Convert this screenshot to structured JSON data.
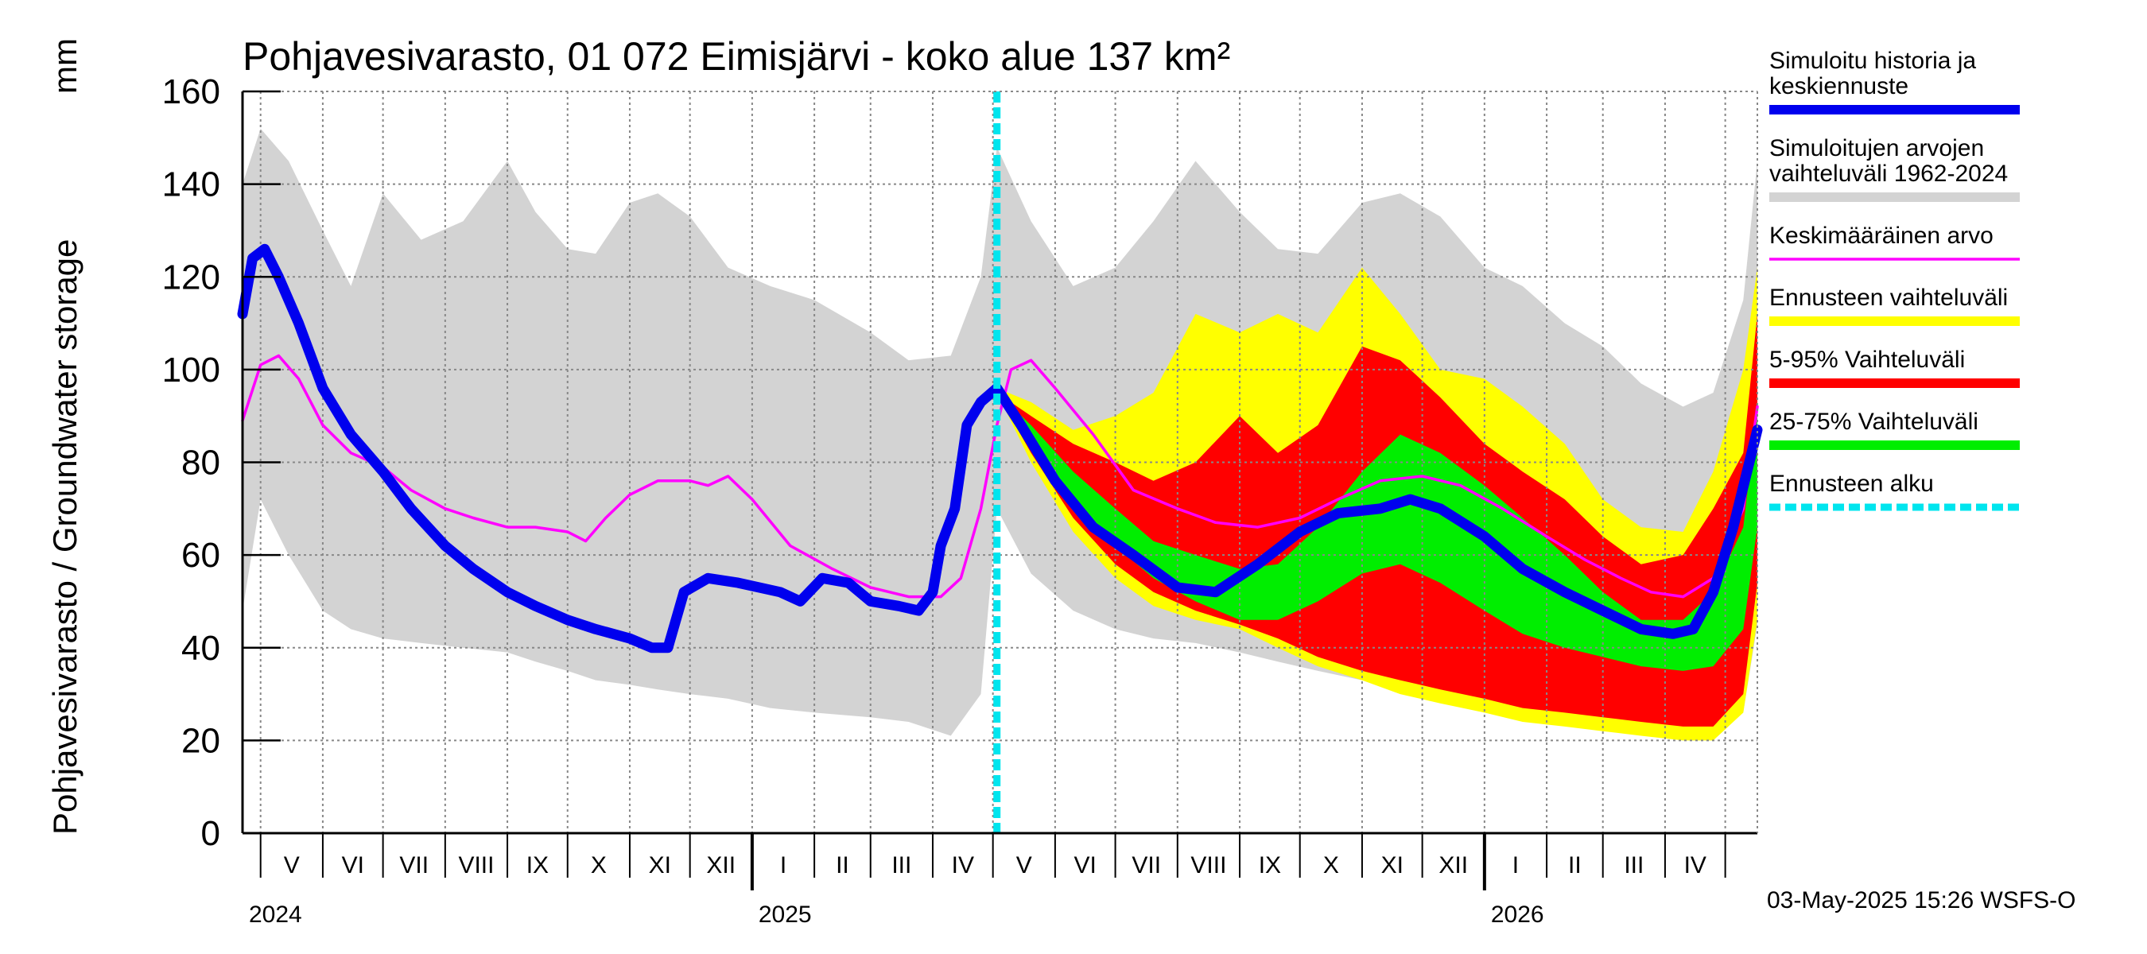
{
  "chart_data": {
    "type": "line",
    "title": "Pohjavesivarasto, 01 072 Eimisjärvi - koko alue 137 km²",
    "ylabel": "Pohjavesivarasto / Groundwater storage",
    "yunit": "mm",
    "ylim": [
      0,
      160
    ],
    "yticks": [
      0,
      20,
      40,
      60,
      80,
      100,
      120,
      140,
      160
    ],
    "xlim": [
      "2024-04-22",
      "2026-05-17"
    ],
    "grid": true,
    "months": [
      "V",
      "VI",
      "VII",
      "VIII",
      "IX",
      "X",
      "XI",
      "XII",
      "I",
      "II",
      "III",
      "IV",
      "V",
      "VI",
      "VII",
      "VIII",
      "IX",
      "X",
      "XI",
      "XII",
      "I",
      "II",
      "III",
      "IV"
    ],
    "month_starts": [
      "2024-05-01",
      "2024-06-01",
      "2024-07-01",
      "2024-08-01",
      "2024-09-01",
      "2024-10-01",
      "2024-11-01",
      "2024-12-01",
      "2025-01-01",
      "2025-02-01",
      "2025-03-01",
      "2025-04-01",
      "2025-05-01",
      "2025-06-01",
      "2025-07-01",
      "2025-08-01",
      "2025-09-01",
      "2025-10-01",
      "2025-11-01",
      "2025-12-01",
      "2026-01-01",
      "2026-02-01",
      "2026-03-01",
      "2026-04-01",
      "2026-05-01"
    ],
    "years": [
      {
        "label": "2024",
        "date": "2024-04-22"
      },
      {
        "label": "2025",
        "date": "2025-01-01"
      },
      {
        "label": "2026",
        "date": "2026-01-01"
      }
    ],
    "forecast_start": "2025-05-03",
    "series": [
      {
        "name": "Simuloitujen arvojen vaihteluväli 1962-2024",
        "kind": "band",
        "color": "#d3d3d3",
        "x": [
          "2024-04-22",
          "2024-05-01",
          "2024-05-15",
          "2024-06-01",
          "2024-06-15",
          "2024-07-01",
          "2024-07-20",
          "2024-08-10",
          "2024-09-01",
          "2024-09-15",
          "2024-10-01",
          "2024-10-15",
          "2024-11-01",
          "2024-11-15",
          "2024-12-01",
          "2024-12-20",
          "2025-01-10",
          "2025-02-01",
          "2025-03-01",
          "2025-03-20",
          "2025-04-10",
          "2025-04-25",
          "2025-05-03",
          "2025-05-20",
          "2025-06-10",
          "2025-07-01",
          "2025-07-20",
          "2025-08-10",
          "2025-09-01",
          "2025-09-20",
          "2025-10-10",
          "2025-11-01",
          "2025-11-20",
          "2025-12-10",
          "2026-01-01",
          "2026-01-20",
          "2026-02-10",
          "2026-03-01",
          "2026-03-20",
          "2026-04-10",
          "2026-04-25",
          "2026-05-10",
          "2026-05-17"
        ],
        "upper": [
          140,
          152,
          145,
          130,
          118,
          138,
          128,
          132,
          145,
          134,
          126,
          125,
          136,
          138,
          133,
          122,
          118,
          115,
          108,
          102,
          103,
          120,
          148,
          132,
          118,
          122,
          132,
          145,
          134,
          126,
          125,
          136,
          138,
          133,
          122,
          118,
          110,
          105,
          97,
          92,
          95,
          115,
          145
        ],
        "lower": [
          48,
          72,
          60,
          48,
          44,
          42,
          41,
          40,
          39,
          37,
          35,
          33,
          32,
          31,
          30,
          29,
          27,
          26,
          25,
          24,
          21,
          30,
          70,
          56,
          48,
          44,
          42,
          41,
          39,
          37,
          35,
          33,
          32,
          30,
          29,
          27,
          25,
          24,
          23,
          22,
          21,
          26,
          45
        ]
      },
      {
        "name": "Ennusteen vaihteluväli",
        "kind": "band",
        "color": "#ffff00",
        "x": [
          "2025-05-03",
          "2025-05-20",
          "2025-06-10",
          "2025-07-01",
          "2025-07-20",
          "2025-08-10",
          "2025-09-01",
          "2025-09-20",
          "2025-10-10",
          "2025-11-01",
          "2025-11-20",
          "2025-12-10",
          "2026-01-01",
          "2026-01-20",
          "2026-02-10",
          "2026-03-01",
          "2026-03-20",
          "2026-04-10",
          "2026-04-25",
          "2026-05-10",
          "2026-05-17"
        ],
        "upper": [
          96,
          93,
          87,
          90,
          95,
          112,
          108,
          112,
          108,
          122,
          112,
          100,
          98,
          92,
          84,
          72,
          66,
          65,
          78,
          100,
          122
        ],
        "lower": [
          95,
          80,
          65,
          55,
          49,
          46,
          44,
          40,
          36,
          33,
          30,
          28,
          26,
          24,
          23,
          22,
          21,
          20,
          20,
          26,
          46
        ]
      },
      {
        "name": "5-95% Vaihteluväli",
        "kind": "band",
        "color": "#ff0000",
        "x": [
          "2025-05-03",
          "2025-05-20",
          "2025-06-10",
          "2025-07-01",
          "2025-07-20",
          "2025-08-10",
          "2025-09-01",
          "2025-09-20",
          "2025-10-10",
          "2025-11-01",
          "2025-11-20",
          "2025-12-10",
          "2026-01-01",
          "2026-01-20",
          "2026-02-10",
          "2026-03-01",
          "2026-03-20",
          "2026-04-10",
          "2026-04-25",
          "2026-05-10",
          "2026-05-17"
        ],
        "upper": [
          95,
          90,
          84,
          80,
          76,
          80,
          90,
          82,
          88,
          105,
          102,
          94,
          84,
          78,
          72,
          64,
          58,
          60,
          70,
          82,
          112
        ],
        "lower": [
          95,
          82,
          68,
          58,
          52,
          48,
          45,
          42,
          38,
          35,
          33,
          31,
          29,
          27,
          26,
          25,
          24,
          23,
          23,
          30,
          54
        ]
      },
      {
        "name": "25-75% Vaihteluväli",
        "kind": "band",
        "color": "#00ee00",
        "x": [
          "2025-05-03",
          "2025-05-20",
          "2025-06-10",
          "2025-07-01",
          "2025-07-20",
          "2025-08-10",
          "2025-09-01",
          "2025-09-20",
          "2025-10-10",
          "2025-11-01",
          "2025-11-20",
          "2025-12-10",
          "2026-01-01",
          "2026-01-20",
          "2026-02-10",
          "2026-03-01",
          "2026-03-20",
          "2026-04-10",
          "2026-04-25",
          "2026-05-10",
          "2026-05-17"
        ],
        "upper": [
          95,
          88,
          78,
          70,
          63,
          60,
          57,
          58,
          66,
          78,
          86,
          82,
          75,
          68,
          60,
          52,
          46,
          46,
          52,
          66,
          92
        ],
        "lower": [
          95,
          86,
          72,
          62,
          55,
          50,
          46,
          46,
          50,
          56,
          58,
          54,
          48,
          43,
          40,
          38,
          36,
          35,
          36,
          44,
          66
        ]
      },
      {
        "name": "Keskimääräinen arvo",
        "kind": "line",
        "color": "#ff00ff",
        "x": [
          "2024-04-22",
          "2024-05-01",
          "2024-05-10",
          "2024-05-20",
          "2024-06-01",
          "2024-06-15",
          "2024-07-01",
          "2024-07-15",
          "2024-08-01",
          "2024-08-15",
          "2024-09-01",
          "2024-09-15",
          "2024-10-01",
          "2024-10-10",
          "2024-10-20",
          "2024-11-01",
          "2024-11-15",
          "2024-12-01",
          "2024-12-10",
          "2024-12-20",
          "2025-01-01",
          "2025-01-20",
          "2025-02-10",
          "2025-03-01",
          "2025-03-20",
          "2025-04-05",
          "2025-04-15",
          "2025-04-25",
          "2025-05-03",
          "2025-05-10",
          "2025-05-20",
          "2025-06-01",
          "2025-06-20",
          "2025-07-10",
          "2025-08-01",
          "2025-08-20",
          "2025-09-10",
          "2025-10-01",
          "2025-10-20",
          "2025-11-10",
          "2025-12-01",
          "2025-12-20",
          "2026-01-10",
          "2026-02-01",
          "2026-02-20",
          "2026-03-10",
          "2026-03-25",
          "2026-04-10",
          "2026-04-25",
          "2026-05-10",
          "2026-05-17"
        ],
        "values": [
          89,
          101,
          103,
          98,
          88,
          82,
          79,
          74,
          70,
          68,
          66,
          66,
          65,
          63,
          68,
          73,
          76,
          76,
          75,
          77,
          72,
          62,
          57,
          53,
          51,
          51,
          55,
          70,
          88,
          100,
          102,
          96,
          86,
          74,
          70,
          67,
          66,
          68,
          72,
          76,
          77,
          75,
          70,
          64,
          59,
          55,
          52,
          51,
          55,
          70,
          92
        ]
      },
      {
        "name": "Simuloitu historia ja keskiennuste",
        "kind": "line",
        "color": "#0000ee",
        "x": [
          "2024-04-22",
          "2024-04-27",
          "2024-05-03",
          "2024-05-10",
          "2024-05-20",
          "2024-06-01",
          "2024-06-15",
          "2024-07-01",
          "2024-07-15",
          "2024-08-01",
          "2024-08-15",
          "2024-09-01",
          "2024-09-15",
          "2024-10-01",
          "2024-10-15",
          "2024-11-01",
          "2024-11-12",
          "2024-11-20",
          "2024-11-28",
          "2024-12-10",
          "2024-12-25",
          "2025-01-15",
          "2025-01-25",
          "2025-02-05",
          "2025-02-18",
          "2025-03-01",
          "2025-03-15",
          "2025-03-25",
          "2025-04-01",
          "2025-04-05",
          "2025-04-12",
          "2025-04-18",
          "2025-04-25",
          "2025-05-03",
          "2025-05-15",
          "2025-06-01",
          "2025-06-20",
          "2025-07-10",
          "2025-08-01",
          "2025-08-20",
          "2025-09-10",
          "2025-10-01",
          "2025-10-20",
          "2025-11-10",
          "2025-11-25",
          "2025-12-10",
          "2026-01-01",
          "2026-01-20",
          "2026-02-10",
          "2026-03-01",
          "2026-03-20",
          "2026-04-05",
          "2026-04-15",
          "2026-04-25",
          "2026-05-05",
          "2026-05-17"
        ],
        "values": [
          112,
          124,
          126,
          120,
          110,
          96,
          86,
          78,
          70,
          62,
          57,
          52,
          49,
          46,
          44,
          42,
          40,
          40,
          52,
          55,
          54,
          52,
          50,
          55,
          54,
          50,
          49,
          48,
          52,
          62,
          70,
          88,
          93,
          96,
          88,
          76,
          66,
          60,
          53,
          52,
          58,
          65,
          69,
          70,
          72,
          70,
          64,
          57,
          52,
          48,
          44,
          43,
          44,
          52,
          66,
          87
        ]
      },
      {
        "name": "Ennusteen alku",
        "kind": "vline",
        "color": "#00e5ee"
      }
    ]
  },
  "legend": [
    {
      "label": "Simuloitu historia ja keskiennuste",
      "color": "#0000ee",
      "style": "thick"
    },
    {
      "label": "Simuloitujen arvojen vaihteluväli 1962-2024",
      "color": "#d3d3d3",
      "style": "thick"
    },
    {
      "label": "Keskimääräinen arvo",
      "color": "#ff00ff",
      "style": "thin"
    },
    {
      "label": "Ennusteen vaihteluväli",
      "color": "#ffff00",
      "style": "thick"
    },
    {
      "label": "5-95% Vaihteluväli",
      "color": "#ff0000",
      "style": "thick"
    },
    {
      "label": "25-75% Vaihteluväli",
      "color": "#00ee00",
      "style": "thick"
    },
    {
      "label": "Ennusteen alku",
      "color": "#00e5ee",
      "style": "dashed"
    }
  ],
  "timestamp": "03-May-2025 15:26 WSFS-O"
}
